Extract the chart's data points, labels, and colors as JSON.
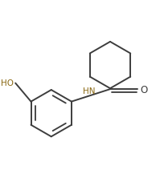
{
  "background_color": "#ffffff",
  "line_color": "#3d3d3d",
  "ho_color": "#8b6914",
  "hn_color": "#8b6914",
  "o_color": "#3d3d3d",
  "figsize": [
    1.99,
    2.28
  ],
  "dpi": 100,
  "xlim": [
    0,
    10
  ],
  "ylim": [
    0,
    11.4
  ]
}
